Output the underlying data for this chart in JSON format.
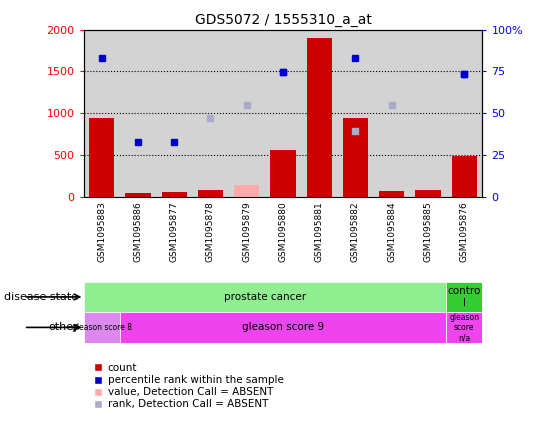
{
  "title": "GDS5072 / 1555310_a_at",
  "samples": [
    "GSM1095883",
    "GSM1095886",
    "GSM1095877",
    "GSM1095878",
    "GSM1095879",
    "GSM1095880",
    "GSM1095881",
    "GSM1095882",
    "GSM1095884",
    "GSM1095885",
    "GSM1095876"
  ],
  "count_values": [
    950,
    50,
    60,
    80,
    null,
    560,
    1900,
    940,
    70,
    80,
    490
  ],
  "count_absent": [
    null,
    null,
    null,
    null,
    150,
    null,
    null,
    null,
    null,
    null,
    null
  ],
  "rank_present": [
    null,
    660,
    660,
    null,
    null,
    1490,
    null,
    null,
    null,
    null,
    1470
  ],
  "rank_absent": [
    null,
    null,
    null,
    940,
    1100,
    null,
    null,
    790,
    1100,
    null,
    null
  ],
  "blue_dot_values": [
    1660,
    null,
    null,
    null,
    null,
    1490,
    null,
    1660,
    null,
    null,
    1470
  ],
  "ylim_left": [
    0,
    2000
  ],
  "ylim_right": [
    0,
    100
  ],
  "left_ticks": [
    0,
    500,
    1000,
    1500,
    2000
  ],
  "right_ticks": [
    0,
    25,
    50,
    75,
    100
  ],
  "bar_color": "#cc0000",
  "absent_bar_color": "#ffaaaa",
  "blue_dot_color": "#0000cc",
  "blue_absent_color": "#aaaacc",
  "bg_color": "#d3d3d3",
  "sample_row_bg": "#cccccc",
  "disease_groups": [
    {
      "label": "prostate cancer",
      "start": 0,
      "end": 9,
      "color": "#90ee90"
    },
    {
      "label": "contro\nl",
      "start": 10,
      "end": 10,
      "color": "#33cc33"
    }
  ],
  "other_groups": [
    {
      "label": "gleason score 8",
      "start": 0,
      "end": 0,
      "color": "#dd88ee"
    },
    {
      "label": "gleason score 9",
      "start": 1,
      "end": 9,
      "color": "#ee44ee"
    },
    {
      "label": "gleason\nscore\nn/a",
      "start": 10,
      "end": 10,
      "color": "#ee44ee"
    }
  ],
  "legend_items": [
    {
      "label": "count",
      "color": "#cc0000"
    },
    {
      "label": "percentile rank within the sample",
      "color": "#0000cc"
    },
    {
      "label": "value, Detection Call = ABSENT",
      "color": "#ffaaaa"
    },
    {
      "label": "rank, Detection Call = ABSENT",
      "color": "#aaaacc"
    }
  ]
}
